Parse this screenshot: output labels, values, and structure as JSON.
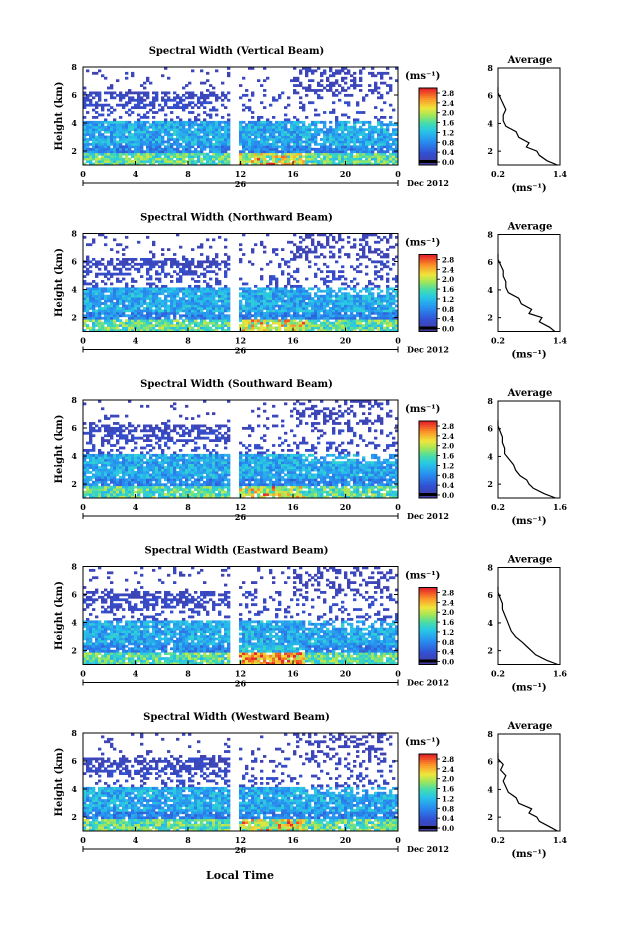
{
  "figure": {
    "shared_xlabel": "Local Time",
    "date_label": "Dec 2012",
    "day_label": "26",
    "colorbar_unit": "(ms⁻¹)",
    "avg_title": "Average",
    "avg_xunit": "(ms⁻¹)",
    "ylabel": "Height (km)"
  },
  "chart_data": [
    {
      "type": "heatmap",
      "title": "Spectral Width (Vertical Beam)",
      "ylabel": "Height (km)",
      "x_ticks": [
        "0",
        "4",
        "8",
        "12",
        "16",
        "20",
        "0"
      ],
      "y_ticks": [
        "2",
        "4",
        "6",
        "8"
      ],
      "xlim": [
        0,
        24
      ],
      "ylim": [
        1,
        8
      ],
      "colorbar_ticks": [
        "0.0",
        "0.4",
        "0.8",
        "1.2",
        "1.6",
        "2.0",
        "2.4",
        "2.8"
      ],
      "colorbar_range": [
        0,
        2.8
      ],
      "data_gap_hours": [
        11.2,
        11.8
      ],
      "average": {
        "title": "Average",
        "xlabel": "(ms⁻¹)",
        "x_ticks": [
          "0.2",
          "1.4"
        ],
        "y_ticks": [
          "2",
          "4",
          "6",
          "8"
        ],
        "xlim": [
          0.2,
          1.4
        ],
        "height_km": [
          1.0,
          1.3,
          1.7,
          2.0,
          2.3,
          2.6,
          3.0,
          3.4,
          3.8,
          4.2,
          4.6,
          5.0,
          5.4,
          5.8,
          6.2,
          6.6
        ],
        "width_ms": [
          1.35,
          1.15,
          1.0,
          0.95,
          0.75,
          0.8,
          0.6,
          0.55,
          0.35,
          0.3,
          0.3,
          0.35,
          0.3,
          0.25,
          0.2,
          0.2
        ]
      }
    },
    {
      "type": "heatmap",
      "title": "Spectral Width (Northward Beam)",
      "ylabel": "Height (km)",
      "x_ticks": [
        "0",
        "4",
        "8",
        "12",
        "16",
        "20",
        "0"
      ],
      "y_ticks": [
        "2",
        "4",
        "6",
        "8"
      ],
      "xlim": [
        0,
        24
      ],
      "ylim": [
        1,
        8
      ],
      "colorbar_ticks": [
        "0.0",
        "0.4",
        "0.8",
        "1.2",
        "1.6",
        "2.0",
        "2.4",
        "2.8"
      ],
      "colorbar_range": [
        0,
        2.8
      ],
      "data_gap_hours": [
        11.2,
        11.8
      ],
      "average": {
        "title": "Average",
        "xlabel": "(ms⁻¹)",
        "x_ticks": [
          "0.2",
          "1.4"
        ],
        "y_ticks": [
          "2",
          "4",
          "6",
          "8"
        ],
        "xlim": [
          0.2,
          1.4
        ],
        "height_km": [
          1.0,
          1.3,
          1.7,
          2.0,
          2.3,
          2.6,
          3.0,
          3.4,
          3.8,
          4.2,
          4.6,
          5.0,
          5.4,
          5.8,
          6.2,
          6.6
        ],
        "width_ms": [
          1.3,
          1.2,
          1.0,
          1.05,
          0.8,
          0.85,
          0.65,
          0.6,
          0.4,
          0.35,
          0.35,
          0.3,
          0.3,
          0.25,
          0.2,
          0.2
        ]
      }
    },
    {
      "type": "heatmap",
      "title": "Spectral Width (Southward Beam)",
      "ylabel": "Height (km)",
      "x_ticks": [
        "0",
        "4",
        "8",
        "12",
        "16",
        "20",
        "0"
      ],
      "y_ticks": [
        "2",
        "4",
        "6",
        "8"
      ],
      "xlim": [
        0,
        24
      ],
      "ylim": [
        1,
        8
      ],
      "colorbar_ticks": [
        "0.0",
        "0.4",
        "0.8",
        "1.2",
        "1.6",
        "2.0",
        "2.4",
        "2.8"
      ],
      "colorbar_range": [
        0,
        2.8
      ],
      "data_gap_hours": [
        11.2,
        11.8
      ],
      "average": {
        "title": "Average",
        "xlabel": "(ms⁻¹)",
        "x_ticks": [
          "0.2",
          "1.6"
        ],
        "y_ticks": [
          "2",
          "4",
          "6",
          "8"
        ],
        "xlim": [
          0.2,
          1.6
        ],
        "height_km": [
          1.0,
          1.3,
          1.7,
          2.0,
          2.3,
          2.6,
          3.0,
          3.4,
          3.8,
          4.2,
          4.6,
          5.0,
          5.4,
          5.8,
          6.2,
          6.6
        ],
        "width_ms": [
          1.5,
          1.25,
          1.0,
          0.9,
          0.85,
          0.7,
          0.6,
          0.55,
          0.45,
          0.35,
          0.35,
          0.3,
          0.3,
          0.25,
          0.2,
          0.2
        ]
      }
    },
    {
      "type": "heatmap",
      "title": "Spectral Width (Eastward Beam)",
      "ylabel": "Height (km)",
      "x_ticks": [
        "0",
        "4",
        "8",
        "12",
        "16",
        "20",
        "0"
      ],
      "y_ticks": [
        "2",
        "4",
        "6",
        "8"
      ],
      "xlim": [
        0,
        24
      ],
      "ylim": [
        1,
        8
      ],
      "colorbar_ticks": [
        "0.0",
        "0.4",
        "0.8",
        "1.2",
        "1.6",
        "2.0",
        "2.4",
        "2.8"
      ],
      "colorbar_range": [
        0,
        2.8
      ],
      "data_gap_hours": [
        11.2,
        11.8
      ],
      "average": {
        "title": "Average",
        "xlabel": "(ms⁻¹)",
        "x_ticks": [
          "0.2",
          "1.6"
        ],
        "y_ticks": [
          "2",
          "4",
          "6",
          "8"
        ],
        "xlim": [
          0.2,
          1.6
        ],
        "height_km": [
          1.0,
          1.3,
          1.7,
          2.0,
          2.3,
          2.6,
          3.0,
          3.4,
          3.8,
          4.2,
          4.6,
          5.0,
          5.4,
          5.8,
          6.2,
          6.6
        ],
        "width_ms": [
          1.55,
          1.3,
          1.05,
          0.95,
          0.85,
          0.75,
          0.6,
          0.5,
          0.45,
          0.4,
          0.35,
          0.3,
          0.3,
          0.25,
          0.2,
          0.2
        ]
      }
    },
    {
      "type": "heatmap",
      "title": "Spectral Width (Westward Beam)",
      "ylabel": "Height (km)",
      "x_ticks": [
        "0",
        "4",
        "8",
        "12",
        "16",
        "20",
        "0"
      ],
      "y_ticks": [
        "2",
        "4",
        "6",
        "8"
      ],
      "xlim": [
        0,
        24
      ],
      "ylim": [
        1,
        8
      ],
      "colorbar_ticks": [
        "0.0",
        "0.4",
        "0.8",
        "1.2",
        "1.6",
        "2.0",
        "2.4",
        "2.8"
      ],
      "colorbar_range": [
        0,
        2.8
      ],
      "data_gap_hours": [
        11.2,
        11.8
      ],
      "average": {
        "title": "Average",
        "xlabel": "(ms⁻¹)",
        "x_ticks": [
          "0.2",
          "1.4"
        ],
        "y_ticks": [
          "2",
          "4",
          "6",
          "8"
        ],
        "xlim": [
          0.2,
          1.4
        ],
        "height_km": [
          1.0,
          1.3,
          1.7,
          2.0,
          2.3,
          2.6,
          3.0,
          3.4,
          3.8,
          4.2,
          4.6,
          5.0,
          5.4,
          5.8,
          6.2,
          6.6
        ],
        "width_ms": [
          1.35,
          1.2,
          1.0,
          0.95,
          0.8,
          0.85,
          0.6,
          0.55,
          0.4,
          0.35,
          0.3,
          0.35,
          0.25,
          0.3,
          0.2,
          0.2
        ]
      }
    }
  ]
}
